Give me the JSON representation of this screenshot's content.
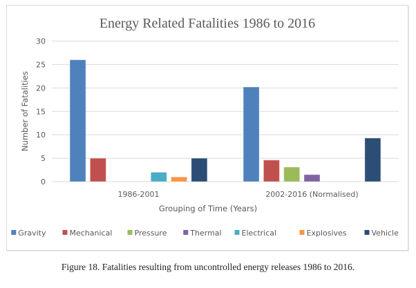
{
  "chart_data": {
    "type": "bar",
    "title": "Energy Related Fatalities 1986 to 2016",
    "xlabel": "Grouping of Time (Years)",
    "ylabel": "Number of Fatalities",
    "ylim": [
      0,
      30
    ],
    "yticks": [
      0,
      5,
      10,
      15,
      20,
      25,
      30
    ],
    "grid": true,
    "legend_position": "bottom",
    "categories": [
      "1986-2001",
      "2002-2016 (Normalised)"
    ],
    "series": [
      {
        "name": "Gravity",
        "color": "#4f81bd",
        "values": [
          26,
          20.2
        ]
      },
      {
        "name": "Mechanical",
        "color": "#c0504d",
        "values": [
          5,
          4.6
        ]
      },
      {
        "name": "Pressure",
        "color": "#9bbb59",
        "values": [
          0,
          3.1
        ]
      },
      {
        "name": "Thermal",
        "color": "#8064a2",
        "values": [
          0,
          1.5
        ]
      },
      {
        "name": "Electrical",
        "color": "#4bacc6",
        "values": [
          2,
          0
        ]
      },
      {
        "name": "Explosives",
        "color": "#f79646",
        "values": [
          1,
          0
        ]
      },
      {
        "name": "Vehicle",
        "color": "#2c4d75",
        "values": [
          5,
          9.3
        ]
      }
    ]
  },
  "caption": "Figure 18. Fatalities resulting from uncontrolled energy releases 1986 to 2016."
}
